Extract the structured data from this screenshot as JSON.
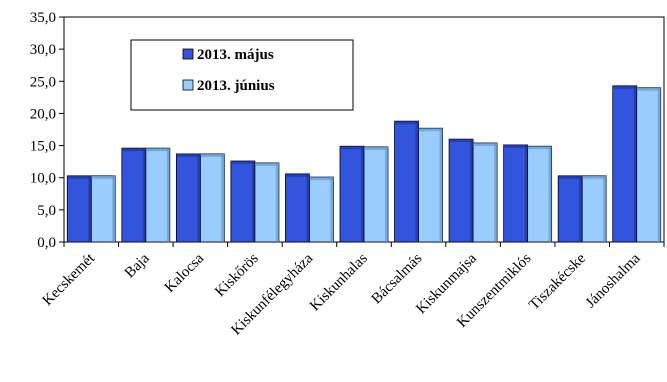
{
  "chart_data": {
    "type": "bar",
    "categories": [
      "Kecskemét",
      "Baja",
      "Kalocsa",
      "Kiskőrös",
      "Kiskunfélegyháza",
      "Kiskunhalas",
      "Bácsalmás",
      "Kiskunmajsa",
      "Kunszentmiklós",
      "Tiszakécske",
      "Jánoshalma"
    ],
    "series": [
      {
        "name": "2013. május",
        "color": "#3355dd",
        "values": [
          10.3,
          14.6,
          13.7,
          12.6,
          10.6,
          14.9,
          18.8,
          16.0,
          15.1,
          10.3,
          24.3
        ]
      },
      {
        "name": "2013. június",
        "color": "#99ccff",
        "values": [
          10.3,
          14.6,
          13.7,
          12.3,
          10.1,
          14.8,
          17.7,
          15.4,
          14.9,
          10.3,
          24.0
        ]
      }
    ],
    "ylim": [
      0,
      35
    ],
    "yticks": [
      "0,0",
      "5,0",
      "10,0",
      "15,0",
      "20,0",
      "25,0",
      "30,0",
      "35,0"
    ],
    "legend_position": "top-left",
    "grid": false
  }
}
